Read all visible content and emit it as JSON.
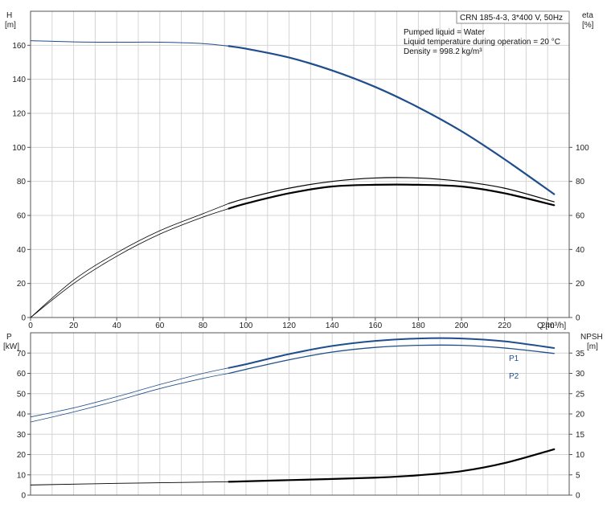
{
  "chart_data": [
    {
      "type": "line",
      "panel": "upper",
      "title": "CRN 185-4-3, 3*400 V, 50Hz",
      "info": [
        "Pumped liquid = Water",
        "Liquid temperature during operation = 20 °C",
        "Density = 998.2 kg/m³"
      ],
      "xlabel": "Q [m³/h]",
      "ylabel_left": [
        "H",
        "[m]"
      ],
      "ylabel_right": [
        "eta",
        "[%]"
      ],
      "xlim": [
        0,
        250
      ],
      "ylim": [
        0,
        180
      ],
      "x_ticks": [
        "0",
        "20",
        "40",
        "60",
        "80",
        "100",
        "120",
        "140",
        "160",
        "180",
        "200",
        "220",
        "240"
      ],
      "y_ticks_left": [
        "0",
        "20",
        "40",
        "60",
        "80",
        "100",
        "120",
        "140",
        "160"
      ],
      "y_ticks_right": [
        "0",
        "20",
        "40",
        "60",
        "80",
        "100"
      ],
      "grid": true,
      "colors": {
        "head": "#1f4e8c",
        "eta": "#000000"
      },
      "series": [
        {
          "role": "head",
          "x": [
            0,
            20,
            40,
            60,
            80,
            92,
            100,
            120,
            140,
            160,
            180,
            200,
            220,
            243
          ],
          "y": [
            162.7,
            162,
            161.8,
            161.8,
            161,
            159.5,
            158,
            152.8,
            145.2,
            135.5,
            123.5,
            109.5,
            93,
            72.5
          ]
        },
        {
          "role": "eta-outer",
          "x": [
            0,
            20,
            40,
            60,
            80,
            92,
            100,
            120,
            140,
            160,
            180,
            200,
            220,
            243
          ],
          "y": [
            0,
            22,
            38,
            51,
            61,
            67,
            70,
            76,
            80,
            82,
            82,
            80,
            76,
            68
          ]
        },
        {
          "role": "eta-inner",
          "x": [
            0,
            20,
            40,
            60,
            80,
            92,
            100,
            120,
            140,
            160,
            180,
            200,
            220,
            243
          ],
          "y": [
            0,
            20,
            36,
            49,
            59,
            64,
            67,
            73,
            77,
            78,
            78,
            77,
            73,
            66
          ]
        }
      ]
    },
    {
      "type": "line",
      "panel": "lower",
      "ylabel_left": [
        "P",
        "[kW]"
      ],
      "ylabel_right": [
        "NPSH",
        "[m]"
      ],
      "xlim": [
        0,
        250
      ],
      "ylim_left": [
        0,
        80
      ],
      "ylim_right": [
        0,
        40
      ],
      "y_ticks_left": [
        "0",
        "10",
        "20",
        "30",
        "40",
        "50",
        "60",
        "70"
      ],
      "y_ticks_right": [
        "0",
        "5",
        "10",
        "15",
        "20",
        "25",
        "30",
        "35"
      ],
      "grid": true,
      "colors": {
        "power": "#1f4e8c",
        "npsh": "#000000"
      },
      "series": [
        {
          "name": "P1",
          "x": [
            0,
            20,
            40,
            60,
            80,
            92,
            100,
            120,
            140,
            160,
            180,
            200,
            220,
            243
          ],
          "y": [
            38.5,
            43,
            48.5,
            54.5,
            60,
            62.7,
            64.5,
            69.5,
            73.5,
            76,
            77.2,
            77.2,
            75.8,
            72.5
          ]
        },
        {
          "name": "P2",
          "x": [
            0,
            20,
            40,
            60,
            80,
            92,
            100,
            120,
            140,
            160,
            180,
            200,
            220,
            243
          ],
          "y": [
            36,
            41,
            46.5,
            52.5,
            57.5,
            60,
            62,
            66.7,
            70.5,
            72.8,
            73.8,
            73.8,
            72.5,
            69.8
          ]
        },
        {
          "role": "npsh",
          "x": [
            0,
            40,
            80,
            92,
            120,
            160,
            180,
            200,
            220,
            243
          ],
          "y": [
            2.5,
            2.9,
            3.2,
            3.3,
            3.7,
            4.3,
            4.9,
            5.9,
            7.9,
            11.3
          ]
        }
      ]
    }
  ]
}
